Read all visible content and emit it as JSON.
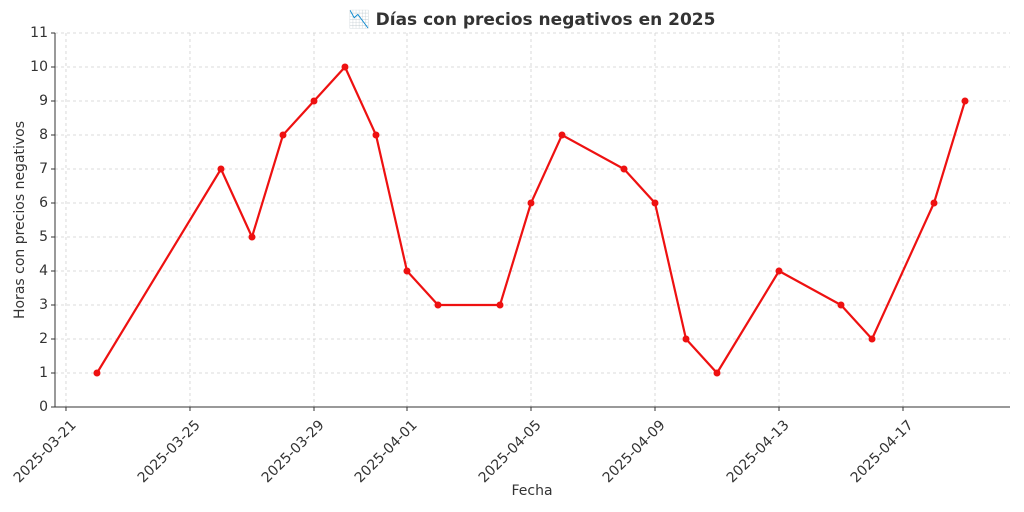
{
  "chart_data": {
    "type": "line",
    "title": "📉 Días con precios negativos en 2025",
    "xlabel": "Fecha",
    "ylabel": "Horas con precios negativos",
    "x": [
      "2025-03-22",
      "2025-03-26",
      "2025-03-27",
      "2025-03-28",
      "2025-03-29",
      "2025-03-30",
      "2025-03-31",
      "2025-04-01",
      "2025-04-02",
      "2025-04-04",
      "2025-04-05",
      "2025-04-06",
      "2025-04-08",
      "2025-04-09",
      "2025-04-10",
      "2025-04-11",
      "2025-04-13",
      "2025-04-15",
      "2025-04-16",
      "2025-04-18",
      "2025-04-19"
    ],
    "series": [
      {
        "name": "Horas",
        "color": "#ee1111",
        "values": [
          1,
          7,
          5,
          8,
          9,
          10,
          8,
          4,
          3,
          3,
          6,
          8,
          7,
          6,
          2,
          1,
          4,
          3,
          2,
          6,
          9
        ]
      }
    ],
    "xlim": [
      "2025-03-20T15:30Z",
      "2025-04-20T10:50Z"
    ],
    "xticks": [
      "2025-03-21",
      "2025-03-25",
      "2025-03-29",
      "2025-04-01",
      "2025-04-05",
      "2025-04-09",
      "2025-04-13",
      "2025-04-17"
    ],
    "ylim": [
      0,
      11
    ],
    "yticks": [
      0,
      1,
      2,
      3,
      4,
      5,
      6,
      7,
      8,
      9,
      10,
      11
    ],
    "grid": true
  }
}
